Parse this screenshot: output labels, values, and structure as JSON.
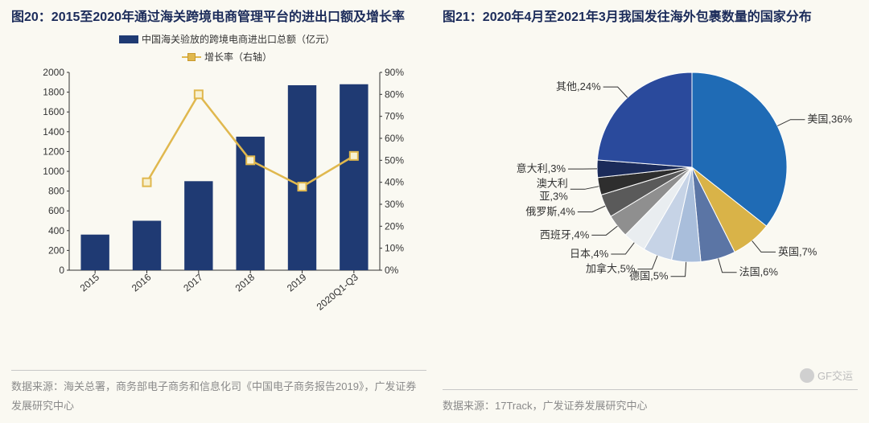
{
  "left": {
    "title": "图20：2015至2020年通过海关跨境电商管理平台的进出口额及增长率",
    "legend_bar": "中国海关验放的跨境电商进出口总额（亿元）",
    "legend_line": "增长率（右轴）",
    "categories": [
      "2015",
      "2016",
      "2017",
      "2018",
      "2019",
      "2020Q1-Q3"
    ],
    "bar_values": [
      360,
      500,
      900,
      1350,
      1870,
      1880
    ],
    "line_values": [
      null,
      40,
      80,
      50,
      38,
      52
    ],
    "y_left": {
      "min": 0,
      "max": 2000,
      "step": 200
    },
    "y_right": {
      "min": 0,
      "max": 90,
      "step": 10,
      "suffix": "%"
    },
    "bar_color": "#1f3a73",
    "line_color": "#e0b84e",
    "marker_fill": "#f7f1d2",
    "axis_color": "#333333",
    "grid_color": "#cccccc",
    "label_fontsize": 12,
    "source": "数据来源：海关总署，商务部电子商务和信息化司《中国电子商务报告2019》，广发证券发展研究中心"
  },
  "right": {
    "title": "图21：2020年4月至2021年3月我国发往海外包裹数量的国家分布",
    "slices": [
      {
        "label": "美国",
        "pct": 36,
        "color": "#1f6bb5"
      },
      {
        "label": "英国",
        "pct": 7,
        "color": "#d9b348"
      },
      {
        "label": "法国",
        "pct": 6,
        "color": "#5b75a5"
      },
      {
        "label": "德国",
        "pct": 5,
        "color": "#a9bedb"
      },
      {
        "label": "加拿大",
        "pct": 5,
        "color": "#c6d3e6"
      },
      {
        "label": "日本",
        "pct": 4,
        "color": "#e9edf0"
      },
      {
        "label": "西班牙",
        "pct": 4,
        "color": "#8f8f8f"
      },
      {
        "label": "俄罗斯",
        "pct": 4,
        "color": "#5a5a5a"
      },
      {
        "label": "澳大利亚",
        "pct": 3,
        "color": "#2e2e2e"
      },
      {
        "label": "意大利",
        "pct": 3,
        "color": "#1b2b5a"
      },
      {
        "label": "其他",
        "pct": 24,
        "color": "#2a4a9c"
      }
    ],
    "pie_bg": "#faf9f2",
    "label_fontsize": 13,
    "leader_color": "#333333",
    "source": "数据来源：17Track，广发证券发展研究中心"
  },
  "watermark": "GF交运"
}
